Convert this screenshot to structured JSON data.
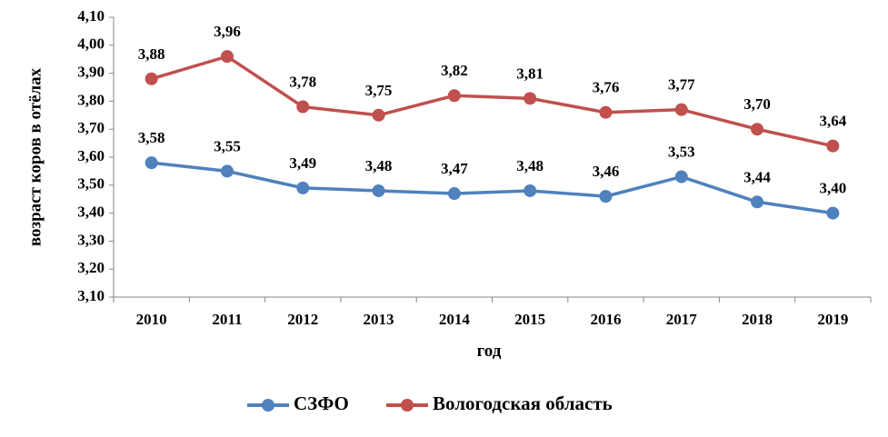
{
  "chart_data": {
    "type": "line",
    "title": "",
    "xlabel": "год",
    "ylabel": "возраст коров в отёлах",
    "categories": [
      "2010",
      "2011",
      "2012",
      "2013",
      "2014",
      "2015",
      "2016",
      "2017",
      "2018",
      "2019"
    ],
    "ylim": [
      3.1,
      4.1
    ],
    "yticks": [
      "3,10",
      "3,20",
      "3,30",
      "3,40",
      "3,50",
      "3,60",
      "3,70",
      "3,80",
      "3,90",
      "4,00",
      "4,10"
    ],
    "grid": false,
    "legend_position": "bottom",
    "series": [
      {
        "name": "СЗФО",
        "color": "#4f81bd",
        "values": [
          3.58,
          3.55,
          3.49,
          3.48,
          3.47,
          3.48,
          3.46,
          3.53,
          3.44,
          3.4
        ],
        "labels": [
          "3,58",
          "3,55",
          "3,49",
          "3,48",
          "3,47",
          "3,48",
          "3,46",
          "3,53",
          "3,44",
          "3,40"
        ]
      },
      {
        "name": "Вологодская область",
        "color": "#c0504d",
        "values": [
          3.88,
          3.96,
          3.78,
          3.75,
          3.82,
          3.81,
          3.76,
          3.77,
          3.7,
          3.64
        ],
        "labels": [
          "3,88",
          "3,96",
          "3,78",
          "3,75",
          "3,82",
          "3,81",
          "3,76",
          "3,77",
          "3,70",
          "3,64"
        ]
      }
    ]
  }
}
